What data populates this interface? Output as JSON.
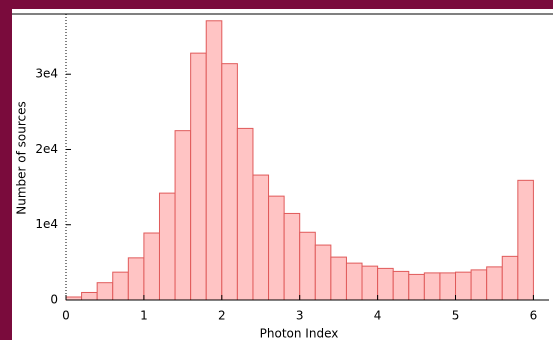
{
  "chart_data": {
    "type": "histogram",
    "x_label": "Photon Index",
    "y_label": "Number of sources",
    "bins": [
      0,
      0.2,
      0.4,
      0.6,
      0.8,
      1.0,
      1.2,
      1.4,
      1.6,
      1.8,
      2.0,
      2.2,
      2.4,
      2.6,
      2.8,
      3.0,
      3.2,
      3.4,
      3.6,
      3.8,
      4.0,
      4.2,
      4.4,
      4.6,
      4.8,
      5.0,
      5.2,
      5.4,
      5.6,
      5.8,
      6.0
    ],
    "values": [
      400,
      1000,
      2300,
      3700,
      5600,
      8900,
      14200,
      22500,
      32800,
      37100,
      31400,
      22800,
      16600,
      13800,
      11500,
      9000,
      7300,
      5700,
      4900,
      4500,
      4200,
      3800,
      3400,
      3600,
      3600,
      3700,
      4000,
      4400,
      5800,
      15900
    ],
    "color": "#ffc4c4",
    "edge_color": "#e05a5a",
    "xlim": [
      0,
      6.2
    ],
    "xticks": [
      0,
      1,
      2,
      3,
      4,
      5,
      6
    ],
    "ylim": [
      0,
      38000
    ],
    "yticks": [
      0,
      {
        "value": 10000,
        "label": "1e4"
      },
      {
        "value": 20000,
        "label": "2e4"
      },
      {
        "value": 30000,
        "label": "3e4"
      }
    ]
  }
}
